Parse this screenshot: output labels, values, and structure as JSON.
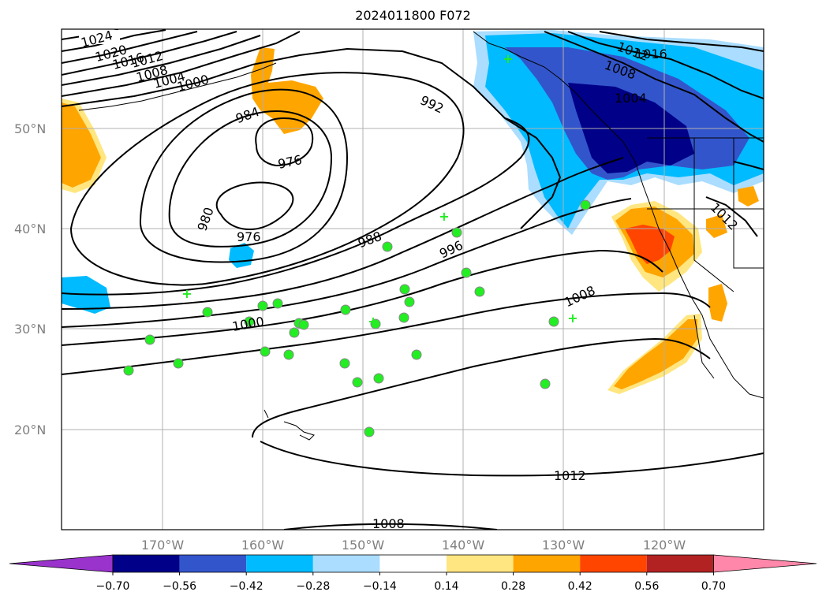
{
  "title": "2024011800 F072",
  "lat_labels": [
    "50°N",
    "40°N",
    "30°N",
    "20°N"
  ],
  "lon_labels": [
    "170°W",
    "160°W",
    "150°W",
    "140°W",
    "130°W",
    "120°W"
  ],
  "colorbar": {
    "colors": [
      "#9933cc",
      "#000088",
      "#3355cc",
      "#00bbff",
      "#aaddff",
      "#ffffff",
      "#ffe680",
      "#ffa500",
      "#ff4500",
      "#b22222",
      "#ff88aa"
    ],
    "tick_labels": [
      "−0.70",
      "−0.56",
      "−0.42",
      "−0.28",
      "−0.14",
      "0.14",
      "0.28",
      "0.42",
      "0.56",
      "0.70"
    ]
  },
  "contour_labels": [
    "1024",
    "1020",
    "1016",
    "1012",
    "1008",
    "1004",
    "1000",
    "984",
    "976",
    "980",
    "976",
    "992",
    "988",
    "996",
    "1000",
    "1008",
    "1012",
    "1008",
    "1016",
    "1012",
    "1008",
    "1004",
    "1012"
  ],
  "map_colors": {
    "grid": "#b0b0b0",
    "contour": "#000000",
    "station": "#22ee22"
  }
}
